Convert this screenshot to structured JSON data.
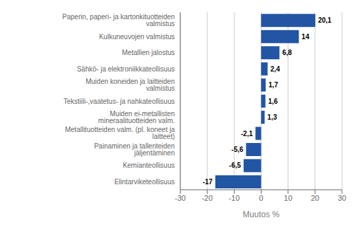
{
  "chart_data": {
    "type": "bar",
    "orientation": "horizontal",
    "categories": [
      "Elintarviketeollisuus",
      "Kemianteollisuus",
      "Painaminen ja tallenteiden jäljentäminen",
      "Metallituotteiden valm. (pl. koneet ja laitteet)",
      "Muiden ei-metallisten mineraalituotteiden valm.",
      "Tekstiili-,vaatetus- ja nahkateollisuus",
      "Muiden koneiden ja laitteiden valmistus",
      "Sähkö- ja elektroniikkateollisuus",
      "Metallien jalostus",
      "Kulkuneuvojen valmistus",
      "Paperin, paperi- ja kartonkituotteiden valmistus"
    ],
    "values": [
      -17,
      -6.5,
      -5.6,
      -2.1,
      1.3,
      1.6,
      1.7,
      2.4,
      6.8,
      14,
      20.1
    ],
    "value_labels": [
      "-17",
      "-6,5",
      "-5,6",
      "-2,1",
      "1,3",
      "1,6",
      "1,7",
      "2,4",
      "6,8",
      "14",
      "20,1"
    ],
    "color": "#2255A4",
    "xlabel": "Muutos %",
    "xlim": [
      -30,
      30
    ],
    "xticks": [
      -30,
      -20,
      -10,
      0,
      10,
      20,
      30
    ],
    "grid": true,
    "data_labels": true
  }
}
